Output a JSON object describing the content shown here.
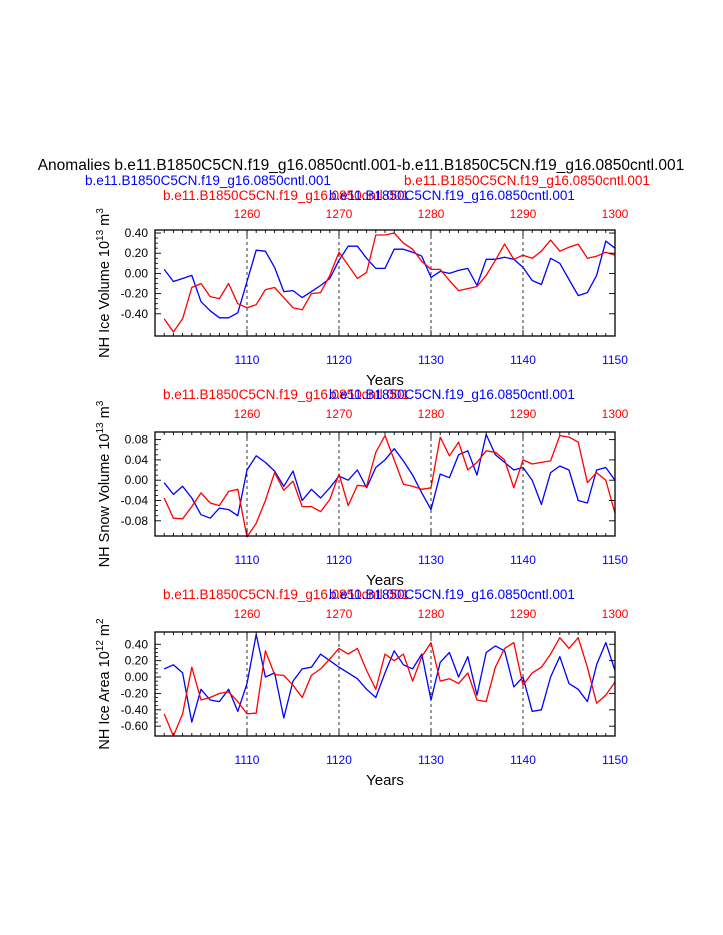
{
  "colors": {
    "blue": "#0000ff",
    "red": "#ff0000",
    "black": "#000000"
  },
  "figure_titles": {
    "main": "Anomalies b.e11.B1850C5CN.f19_g16.0850cntl.001-b.e11.B1850C5CN.f19_g16.0850cntl.001",
    "line2_blue": "b.e11.B1850C5CN.f19_g16.0850cntl.001",
    "line2_red": "b.e11.B1850C5CN.f19_g16.0850cntl.001"
  },
  "chart_data": [
    {
      "type": "line",
      "panel": "ice-volume",
      "title_red": "b.e11.B1850C5CN.f19_g16.0850cntl.001",
      "title_blue": "b.e11.B1850C5CN.f19_g16.0850cntl.001",
      "ylabel": "NH Ice Volume 10",
      "ylabel_exp": "13",
      "ylabel_unit": "m",
      "ylabel_unit_exp": "3",
      "xlabel": "Years",
      "xlim_bottom": [
        1100,
        1150
      ],
      "xlim_top": [
        1250,
        1300
      ],
      "ylim": [
        -0.62,
        0.43
      ],
      "bottom_ticks": [
        "1110",
        "1120",
        "1130",
        "1140",
        "1150"
      ],
      "top_ticks": [
        "1260",
        "1270",
        "1280",
        "1290",
        "1300"
      ],
      "y_ticks": [
        0.4,
        0.2,
        0.0,
        -0.2,
        -0.4
      ],
      "y_tick_labels": [
        "0.40",
        "0.20",
        "0.00",
        "-0.20",
        "-0.40"
      ],
      "series": [
        {
          "name": "b.e11.B1850C5CN.f19_g16.0850cntl.001",
          "color": "blue",
          "values": [
            0.04,
            -0.08,
            -0.05,
            -0.02,
            -0.28,
            -0.37,
            -0.44,
            -0.44,
            -0.39,
            -0.08,
            0.23,
            0.22,
            0.06,
            -0.18,
            -0.17,
            -0.24,
            -0.18,
            -0.12,
            -0.05,
            0.13,
            0.27,
            0.27,
            0.15,
            0.05,
            0.05,
            0.24,
            0.24,
            0.21,
            0.17,
            -0.04,
            0.02,
            0.0,
            0.03,
            0.05,
            -0.12,
            0.14,
            0.14,
            0.16,
            0.14,
            0.06,
            -0.07,
            -0.11,
            0.15,
            0.1,
            -0.06,
            -0.22,
            -0.19,
            -0.02,
            0.32,
            0.25
          ]
        },
        {
          "name": "b.e11.B1850C5CN.f19_g16.0850cntl.001",
          "color": "red",
          "values": [
            -0.45,
            -0.58,
            -0.45,
            -0.14,
            -0.1,
            -0.23,
            -0.25,
            -0.1,
            -0.3,
            -0.34,
            -0.31,
            -0.16,
            -0.14,
            -0.24,
            -0.34,
            -0.36,
            -0.2,
            -0.19,
            -0.02,
            0.21,
            0.08,
            -0.05,
            0.01,
            0.38,
            0.38,
            0.4,
            0.3,
            0.24,
            0.12,
            0.04,
            0.04,
            -0.07,
            -0.17,
            -0.15,
            -0.13,
            -0.02,
            0.13,
            0.29,
            0.14,
            0.18,
            0.15,
            0.22,
            0.33,
            0.22,
            0.26,
            0.29,
            0.15,
            0.17,
            0.21,
            0.18
          ]
        }
      ]
    },
    {
      "type": "line",
      "panel": "snow-volume",
      "title_red": "b.e11.B1850C5CN.f19_g16.0850cntl.001",
      "title_blue": "b.e11.B1850C5CN.f19_g16.0850cntl.001",
      "ylabel": "NH Snow Volume 10",
      "ylabel_exp": "13",
      "ylabel_unit": "m",
      "ylabel_unit_exp": "3",
      "xlabel": "Years",
      "xlim_bottom": [
        1100,
        1150
      ],
      "xlim_top": [
        1250,
        1300
      ],
      "ylim": [
        -0.11,
        0.095
      ],
      "bottom_ticks": [
        "1110",
        "1120",
        "1130",
        "1140",
        "1150"
      ],
      "top_ticks": [
        "1260",
        "1270",
        "1280",
        "1290",
        "1300"
      ],
      "y_ticks": [
        0.08,
        0.04,
        0.0,
        -0.04,
        -0.08
      ],
      "y_tick_labels": [
        "0.08",
        "0.04",
        "0.00",
        "-0.04",
        "-0.08"
      ],
      "series": [
        {
          "name": "b.e11.B1850C5CN.f19_g16.0850cntl.001",
          "color": "blue",
          "values": [
            -0.005,
            -0.028,
            -0.012,
            -0.035,
            -0.068,
            -0.075,
            -0.055,
            -0.058,
            -0.07,
            0.02,
            0.048,
            0.035,
            0.018,
            -0.012,
            0.018,
            -0.04,
            -0.018,
            -0.035,
            -0.015,
            0.008,
            0.0,
            0.02,
            -0.015,
            0.025,
            0.04,
            0.062,
            0.038,
            0.01,
            -0.025,
            -0.058,
            0.012,
            0.005,
            0.05,
            0.058,
            0.01,
            0.09,
            0.05,
            0.035,
            0.02,
            0.025,
            0.0,
            -0.048,
            0.015,
            0.028,
            0.02,
            -0.04,
            -0.045,
            0.02,
            0.025,
            0.0
          ]
        },
        {
          "name": "b.e11.B1850C5CN.f19_g16.0850cntl.001",
          "color": "red",
          "values": [
            -0.035,
            -0.075,
            -0.076,
            -0.052,
            -0.025,
            -0.045,
            -0.05,
            -0.022,
            -0.018,
            -0.112,
            -0.085,
            -0.04,
            0.015,
            -0.02,
            -0.002,
            -0.052,
            -0.052,
            -0.062,
            -0.038,
            0.012,
            -0.05,
            -0.01,
            -0.012,
            0.055,
            0.088,
            0.04,
            -0.008,
            -0.012,
            -0.018,
            -0.015,
            0.085,
            0.048,
            0.075,
            0.02,
            0.035,
            0.058,
            0.055,
            0.04,
            -0.015,
            0.04,
            0.032,
            0.035,
            0.038,
            0.088,
            0.085,
            0.075,
            -0.005,
            0.015,
            0.0,
            -0.065
          ]
        }
      ]
    },
    {
      "type": "line",
      "panel": "ice-area",
      "title_red": "b.e11.B1850C5CN.f19_g16.0850cntl.001",
      "title_blue": "b.e11.B1850C5CN.f19_g16.0850cntl.001",
      "ylabel": "NH Ice Area 10",
      "ylabel_exp": "12",
      "ylabel_unit": "m",
      "ylabel_unit_exp": "2",
      "xlabel": "Years",
      "xlim_bottom": [
        1100,
        1150
      ],
      "xlim_top": [
        1250,
        1300
      ],
      "ylim": [
        -0.72,
        0.55
      ],
      "bottom_ticks": [
        "1110",
        "1120",
        "1130",
        "1140",
        "1150"
      ],
      "top_ticks": [
        "1260",
        "1270",
        "1280",
        "1290",
        "1300"
      ],
      "y_ticks": [
        0.4,
        0.2,
        0.0,
        -0.2,
        -0.4,
        -0.6
      ],
      "y_tick_labels": [
        "0.40",
        "0.20",
        "0.00",
        "-0.20",
        "-0.40",
        "-0.60"
      ],
      "series": [
        {
          "name": "b.e11.B1850C5CN.f19_g16.0850cntl.001",
          "color": "blue",
          "values": [
            0.1,
            0.15,
            0.05,
            -0.55,
            -0.15,
            -0.28,
            -0.3,
            -0.15,
            -0.42,
            -0.08,
            0.52,
            0.0,
            0.05,
            -0.5,
            -0.05,
            0.1,
            0.12,
            0.28,
            0.2,
            0.12,
            0.05,
            -0.02,
            -0.15,
            -0.25,
            0.05,
            0.32,
            0.15,
            0.1,
            0.28,
            -0.28,
            0.18,
            0.3,
            0.0,
            0.25,
            -0.22,
            0.3,
            0.38,
            0.32,
            -0.12,
            0.0,
            -0.42,
            -0.4,
            0.0,
            0.25,
            -0.08,
            -0.15,
            -0.3,
            0.15,
            0.42,
            0.08
          ]
        },
        {
          "name": "b.e11.B1850C5CN.f19_g16.0850cntl.001",
          "color": "red",
          "values": [
            -0.45,
            -0.72,
            -0.45,
            0.12,
            -0.28,
            -0.25,
            -0.2,
            -0.18,
            -0.3,
            -0.45,
            -0.44,
            0.32,
            0.03,
            0.02,
            -0.1,
            -0.25,
            0.02,
            0.1,
            0.22,
            0.35,
            0.28,
            0.35,
            0.08,
            -0.15,
            0.28,
            0.2,
            0.28,
            -0.05,
            0.25,
            0.42,
            -0.05,
            -0.02,
            -0.08,
            0.05,
            -0.28,
            -0.3,
            0.12,
            0.35,
            0.42,
            -0.1,
            0.05,
            0.12,
            0.28,
            0.48,
            0.35,
            0.48,
            0.12,
            -0.32,
            -0.22,
            -0.06
          ]
        }
      ]
    }
  ]
}
